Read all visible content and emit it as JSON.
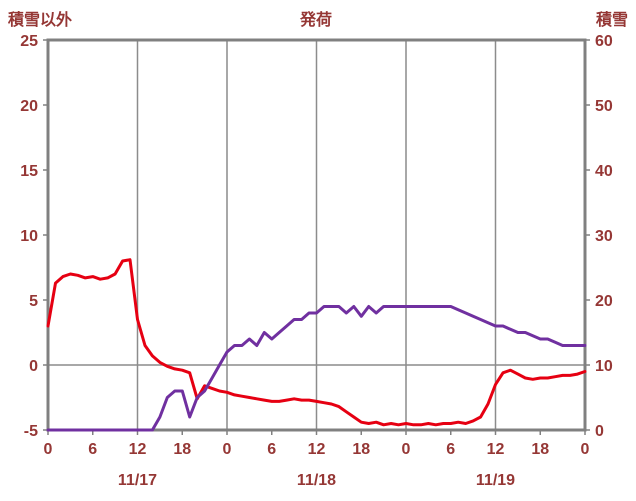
{
  "header": {
    "left_axis_title": "積雪以外",
    "chart_title": "発荷",
    "right_axis_title": "積雪"
  },
  "colors": {
    "label_text": "#953735",
    "grid": "#8c8c8c",
    "border": "#808080",
    "series_other": "#e60012",
    "series_snow": "#7030a0"
  },
  "chart_data": {
    "type": "line",
    "title": "発荷",
    "left_axis": {
      "label": "積雪以外",
      "min": -5,
      "max": 25,
      "ticks": [
        -5,
        0,
        5,
        10,
        15,
        20,
        25
      ]
    },
    "right_axis": {
      "label": "積雪",
      "min": 0,
      "max": 60,
      "ticks": [
        0,
        10,
        20,
        30,
        40,
        50,
        60
      ]
    },
    "x_axis": {
      "min_hour": 0,
      "max_hour": 72,
      "hour_tick_interval": 6,
      "hour_labels": [
        "0",
        "6",
        "12",
        "18",
        "0",
        "6",
        "12",
        "18",
        "0",
        "6",
        "12",
        "18",
        "0"
      ],
      "day_labels": [
        "11/17",
        "11/18",
        "11/19"
      ],
      "day_label_centers_hours": [
        12,
        36,
        60
      ],
      "gridline_interval_hours": 12,
      "zero_line_left_value": 0
    },
    "legend": "none",
    "series": [
      {
        "name": "積雪以外",
        "axis": "left",
        "color": "#e60012",
        "x_hours": [
          0,
          1,
          2,
          3,
          4,
          5,
          6,
          7,
          8,
          9,
          10,
          11,
          12,
          13,
          14,
          15,
          16,
          17,
          18,
          19,
          20,
          21,
          22,
          23,
          24,
          25,
          26,
          27,
          28,
          29,
          30,
          31,
          32,
          33,
          34,
          35,
          36,
          37,
          38,
          39,
          40,
          41,
          42,
          43,
          44,
          45,
          46,
          47,
          48,
          49,
          50,
          51,
          52,
          53,
          54,
          55,
          56,
          57,
          58,
          59,
          60,
          61,
          62,
          63,
          64,
          65,
          66,
          67,
          68,
          69,
          70,
          71,
          72
        ],
        "values": [
          3.0,
          6.3,
          6.8,
          7.0,
          6.9,
          6.7,
          6.8,
          6.6,
          6.7,
          7.0,
          8.0,
          8.1,
          3.5,
          1.5,
          0.7,
          0.2,
          -0.1,
          -0.3,
          -0.4,
          -0.6,
          -2.6,
          -1.6,
          -1.8,
          -2.0,
          -2.1,
          -2.3,
          -2.4,
          -2.5,
          -2.6,
          -2.7,
          -2.8,
          -2.8,
          -2.7,
          -2.6,
          -2.7,
          -2.7,
          -2.8,
          -2.9,
          -3.0,
          -3.2,
          -3.6,
          -4.0,
          -4.4,
          -4.5,
          -4.4,
          -4.6,
          -4.5,
          -4.6,
          -4.5,
          -4.6,
          -4.6,
          -4.5,
          -4.6,
          -4.5,
          -4.5,
          -4.4,
          -4.5,
          -4.3,
          -4.0,
          -3.0,
          -1.5,
          -0.6,
          -0.4,
          -0.7,
          -1.0,
          -1.1,
          -1.0,
          -1.0,
          -0.9,
          -0.8,
          -0.8,
          -0.7,
          -0.5
        ]
      },
      {
        "name": "積雪",
        "axis": "right",
        "color": "#7030a0",
        "x_hours": [
          0,
          1,
          2,
          3,
          4,
          5,
          6,
          7,
          8,
          9,
          10,
          11,
          12,
          13,
          14,
          15,
          16,
          17,
          18,
          19,
          20,
          21,
          22,
          23,
          24,
          25,
          26,
          27,
          28,
          29,
          30,
          31,
          32,
          33,
          34,
          35,
          36,
          37,
          38,
          39,
          40,
          41,
          42,
          43,
          44,
          45,
          46,
          47,
          48,
          49,
          50,
          51,
          52,
          53,
          54,
          55,
          56,
          57,
          58,
          59,
          60,
          61,
          62,
          63,
          64,
          65,
          66,
          67,
          68,
          69,
          70,
          71,
          72
        ],
        "values": [
          0,
          0,
          0,
          0,
          0,
          0,
          0,
          0,
          0,
          0,
          0,
          0,
          0,
          0,
          0,
          2,
          5,
          6,
          6,
          2,
          5,
          6,
          8,
          10,
          12,
          13,
          13,
          14,
          13,
          15,
          14,
          15,
          16,
          17,
          17,
          18,
          18,
          19,
          19,
          19,
          18,
          19,
          17.5,
          19,
          18,
          19,
          19,
          19,
          19,
          19,
          19,
          19,
          19,
          19,
          19,
          18.5,
          18,
          17.5,
          17,
          16.5,
          16,
          16,
          15.5,
          15,
          15,
          14.5,
          14,
          14,
          13.5,
          13,
          13,
          13,
          13
        ]
      }
    ]
  }
}
